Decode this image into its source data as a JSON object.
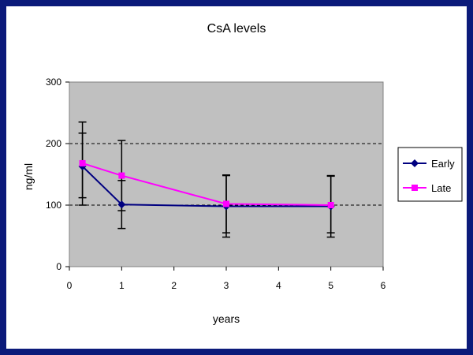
{
  "chart_data": {
    "type": "line",
    "title": "CsA levels",
    "xlabel": "years",
    "ylabel": "ng/ml",
    "xlim": [
      0,
      6
    ],
    "ylim": [
      0,
      300
    ],
    "x_ticks": [
      "0",
      "1",
      "2",
      "3",
      "4",
      "5",
      "6"
    ],
    "y_ticks": [
      "0",
      "100",
      "200",
      "300"
    ],
    "gridlines": [
      100,
      200
    ],
    "legend_position": "right",
    "plot_background": "#c0c0c0",
    "series": [
      {
        "name": "Early",
        "color": "#000080",
        "marker": "diamond",
        "points": [
          {
            "x": 0.25,
            "y": 163,
            "err_low": 112,
            "err_high": 217
          },
          {
            "x": 1,
            "y": 101,
            "err_low": 62,
            "err_high": 140
          },
          {
            "x": 3,
            "y": 98,
            "err_low": 48,
            "err_high": 148
          },
          {
            "x": 5,
            "y": 98,
            "err_low": 48,
            "err_high": 148
          }
        ]
      },
      {
        "name": "Late",
        "color": "#ff00ff",
        "marker": "square",
        "points": [
          {
            "x": 0.25,
            "y": 168,
            "err_low": 100,
            "err_high": 235
          },
          {
            "x": 1,
            "y": 148,
            "err_low": 91,
            "err_high": 205
          },
          {
            "x": 3,
            "y": 102,
            "err_low": 55,
            "err_high": 149
          },
          {
            "x": 5,
            "y": 100,
            "err_low": 55,
            "err_high": 147
          }
        ]
      }
    ]
  }
}
